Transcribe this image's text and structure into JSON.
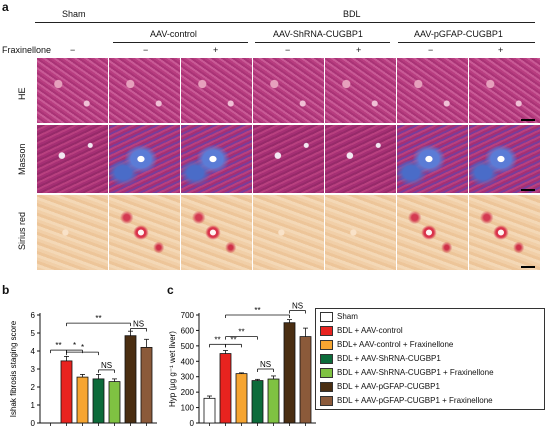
{
  "panel_labels": {
    "a": "a",
    "b": "b",
    "c": "c"
  },
  "header": {
    "sham": "Sham",
    "bdl": "BDL",
    "groups": [
      "AAV-control",
      "AAV-ShRNA-CUGBP1",
      "AAV-pGFAP-CUGBP1"
    ],
    "fraxinellone_label": "Fraxinellone",
    "signs": [
      "−",
      "−",
      "+",
      "−",
      "+",
      "−",
      "+"
    ]
  },
  "row_labels": [
    "HE",
    "Masson",
    "Sirius red"
  ],
  "colors": {
    "sham": "#ffffff",
    "bdl_control": "#e8231f",
    "bdl_control_frax": "#f6a531",
    "bdl_shrna": "#0c6b3a",
    "bdl_shrna_frax": "#7fc242",
    "bdl_pgfap": "#4a2e12",
    "bdl_pgfap_frax": "#8b5a3a"
  },
  "chart_b": {
    "ylabel": "Ishak fibrosis staging score",
    "yticks": [
      "0",
      "1",
      "2",
      "3",
      "4",
      "5",
      "6"
    ],
    "sig": [
      "**",
      "*",
      "*",
      "NS",
      "**",
      "NS"
    ]
  },
  "chart_c": {
    "ylabel": "Hyp (μg g⁻¹ wet liver)",
    "yticks": [
      "0",
      "100",
      "200",
      "300",
      "400",
      "500",
      "600",
      "700"
    ],
    "sig": [
      "**",
      "**",
      "**",
      "NS",
      "**",
      "NS"
    ]
  },
  "legend": [
    "Sham",
    "BDL + AAV-control",
    "BDL+ AAV-control + Fraxinellone",
    "BDL + AAV-ShRNA-CUGBP1",
    "BDL + AAV-ShRNA-CUGBP1 + Fraxinellone",
    "BDL + AAV-pGFAP-CUGBP1",
    "BDL + AAV-pGFAP-CUGBP1 + Fraxinellone"
  ],
  "chart_data": [
    {
      "type": "bar",
      "ylabel": "Ishak fibrosis staging score",
      "ylim": [
        0,
        6
      ],
      "categories": [
        "Sham",
        "BDL + AAV-control",
        "BDL+ AAV-control + Fraxinellone",
        "BDL + AAV-ShRNA-CUGBP1",
        "BDL + AAV-ShRNA-CUGBP1 + Fraxinellone",
        "BDL + AAV-pGFAP-CUGBP1",
        "BDL + AAV-pGFAP-CUGBP1 + Fraxinellone"
      ],
      "values": [
        0,
        3.45,
        2.55,
        2.45,
        2.3,
        4.85,
        4.2
      ],
      "errors": [
        0,
        0.25,
        0.15,
        0.25,
        0.15,
        0.25,
        0.45
      ]
    },
    {
      "type": "bar",
      "ylabel": "Hyp (μg g⁻¹ wet liver)",
      "ylim": [
        0,
        700
      ],
      "categories": [
        "Sham",
        "BDL + AAV-control",
        "BDL+ AAV-control + Fraxinellone",
        "BDL + AAV-ShRNA-CUGBP1",
        "BDL + AAV-ShRNA-CUGBP1 + Fraxinellone",
        "BDL + AAV-pGFAP-CUGBP1",
        "BDL + AAV-pGFAP-CUGBP1 + Fraxinellone"
      ],
      "values": [
        160,
        450,
        320,
        275,
        285,
        650,
        560
      ],
      "errors": [
        15,
        20,
        5,
        8,
        20,
        20,
        55
      ]
    }
  ]
}
